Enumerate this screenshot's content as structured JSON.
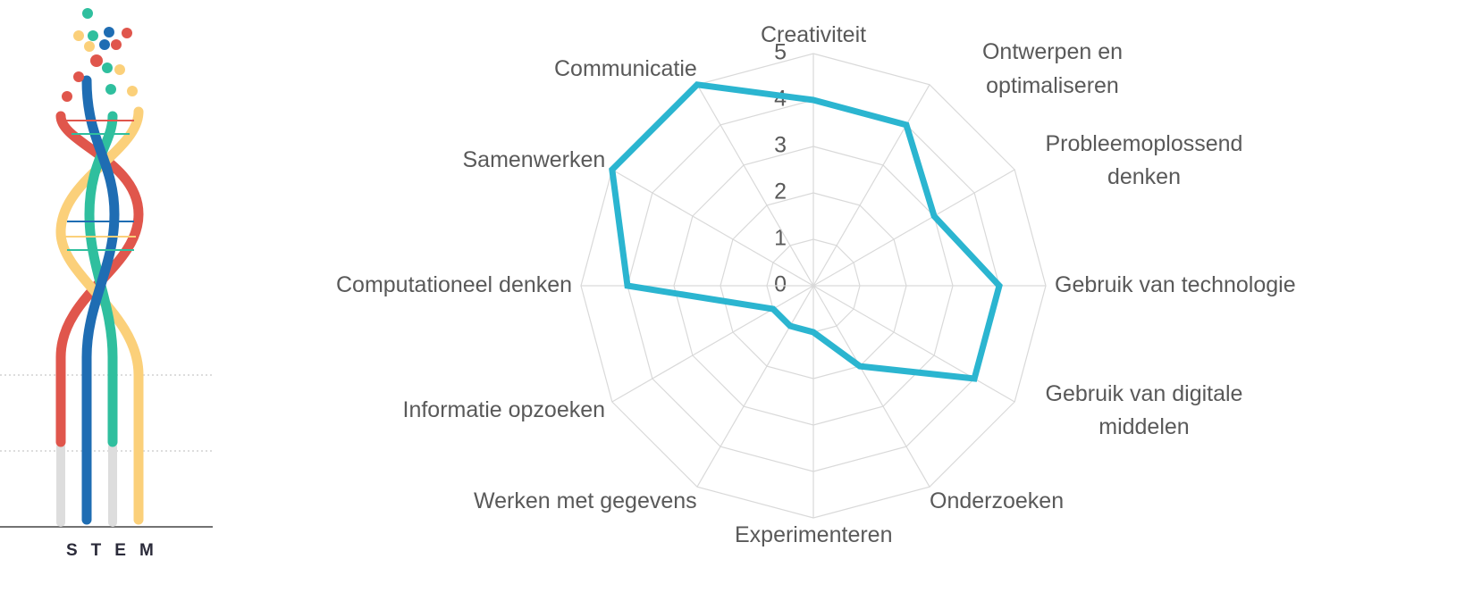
{
  "logo": {
    "text": "STEM"
  },
  "chart_data": {
    "type": "radar",
    "categories": [
      "Creativiteit",
      "Ontwerpen en optimaliseren",
      "Probleemoplossend denken",
      "Gebruik van technologie",
      "Gebruik van digitale middelen",
      "Onderzoeken",
      "Experimenteren",
      "Werken met gegevens",
      "Informatie opzoeken",
      "Computationeel denken",
      "Samenwerken",
      "Communicatie"
    ],
    "values": [
      4,
      4,
      3,
      4,
      4,
      2,
      1,
      1,
      1,
      4,
      5,
      5
    ],
    "color": "#2bb5d0",
    "rlim": [
      0,
      5
    ],
    "rticks": [
      0,
      1,
      2,
      3,
      4,
      5
    ],
    "grid": true
  }
}
